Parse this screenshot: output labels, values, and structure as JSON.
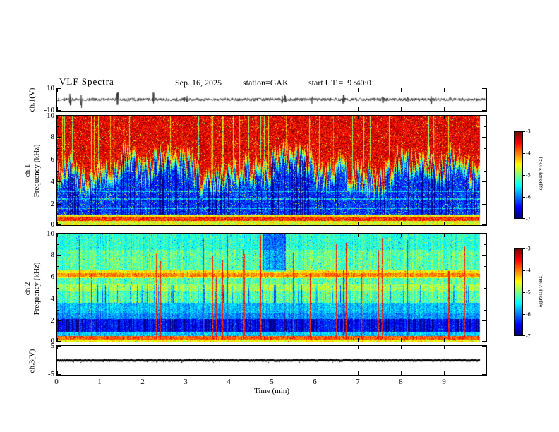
{
  "header": {
    "title": "VLF Spectra",
    "date": "Sep. 16, 2025",
    "station": "station=GAK",
    "start_ut": "start UT =  9 :40:0"
  },
  "axes": {
    "time_label": "Time (min)",
    "time_range": [
      0,
      10
    ],
    "time_ticks": [
      0,
      1,
      2,
      3,
      4,
      5,
      6,
      7,
      8,
      9
    ]
  },
  "panels": {
    "ch1_wave": {
      "ylabel": "ch.1(V)",
      "yrange": [
        -10,
        10
      ],
      "ytick_marks": [
        10,
        0,
        -10
      ],
      "ytick_labels": [
        10,
        -10
      ]
    },
    "ch1_spec": {
      "ylabel_line1": "ch.1",
      "ylabel_line2": "Frequency (kHz)",
      "yrange": [
        0,
        10
      ],
      "ytick_marks": [
        0,
        1,
        2,
        3,
        4,
        5,
        6,
        7,
        8,
        9,
        10
      ],
      "ytick_labels": [
        0,
        2,
        4,
        6,
        8,
        10
      ]
    },
    "ch2_spec": {
      "ylabel_line1": "ch.2",
      "ylabel_line2": "Frequency (kHz)",
      "yrange": [
        0,
        10
      ],
      "ytick_marks": [
        0,
        1,
        2,
        3,
        4,
        5,
        6,
        7,
        8,
        9,
        10
      ],
      "ytick_labels": [
        0,
        2,
        4,
        6,
        8,
        10
      ]
    },
    "ch3_wave": {
      "ylabel": "ch.3(V)",
      "yrange": [
        -5,
        5
      ],
      "ytick_marks": [
        5,
        0,
        -5
      ],
      "ytick_labels": [
        5,
        -5
      ],
      "trace_value": 0
    }
  },
  "colorbar": {
    "label": "log(PSD)(V²/Hz)",
    "ticks": [
      -3,
      -4,
      -5,
      -6,
      -7
    ],
    "range": [
      -7,
      -3
    ],
    "colormap": "jet"
  },
  "chart_data": [
    {
      "type": "line",
      "name": "ch.1 voltage time series",
      "x_range_min": [
        0,
        10
      ],
      "y_range_V": [
        -10,
        10
      ],
      "description": "Broadband noise trace centered on 0 V, typical amplitude about ±2 V, with frequent impulsive spikes reaching roughly ±5 to ±9 V scattered across the whole 10-minute record."
    },
    {
      "type": "heatmap",
      "name": "ch.1 spectrogram",
      "x_range_min": [
        0,
        10
      ],
      "y_range_kHz": [
        0,
        10
      ],
      "z_range_logPSD": [
        -7,
        -3
      ],
      "colormap": "jet",
      "structure": {
        "boundary_khz_mean": 5.0,
        "boundary_jitter_khz": 2.3,
        "above_boundary_level": -3.4,
        "below_boundary_level": -6.3,
        "dark_column_fraction": 0.2,
        "speckle_fraction": 0.06,
        "green_streak_fraction": 0.06,
        "horizontal_lines_khz": [
          1.55,
          2.35,
          3.1
        ],
        "bottom_bands": [
          {
            "f": [
              0.0,
              0.35
            ],
            "level": -4.6
          },
          {
            "f": [
              0.35,
              0.75
            ],
            "level": -3.7
          },
          {
            "f": [
              0.75,
              0.95
            ],
            "level": -4.5
          }
        ]
      }
    },
    {
      "type": "heatmap",
      "name": "ch.2 spectrogram",
      "x_range_min": [
        0,
        10
      ],
      "y_range_kHz": [
        0,
        10
      ],
      "z_range_logPSD": [
        -7,
        -3
      ],
      "colormap": "jet",
      "structure": {
        "base_level": -5.15,
        "bands": [
          {
            "f": [
              8.5,
              10.0
            ],
            "level": -5.35
          },
          {
            "f": [
              5.9,
              6.6
            ],
            "level": -4.45
          },
          {
            "f": [
              6.05,
              6.35
            ],
            "level": -4.05
          },
          {
            "f": [
              4.7,
              5.3
            ],
            "level": -4.85
          },
          {
            "f": [
              2.6,
              3.6
            ],
            "level": -5.75
          },
          {
            "f": [
              2.1,
              2.6
            ],
            "level": -5.95
          },
          {
            "f": [
              0.9,
              2.1
            ],
            "level": -6.45
          },
          {
            "f": [
              0.5,
              0.9
            ],
            "level": -5.7
          },
          {
            "f": [
              0.15,
              0.5
            ],
            "level": -3.85
          },
          {
            "f": [
              0.0,
              0.15
            ],
            "level": -4.5
          }
        ],
        "dark_band_khz": [
          0.9,
          2.1
        ],
        "mid_dark_khz": [
          3.6,
          5.2
        ],
        "dark_column_fraction": 0.22,
        "mid_dark_fraction": 0.1,
        "red_streaks": {
          "count": 26,
          "level": -3.6,
          "top_khz": [
            6,
            10
          ]
        },
        "dark_patch": {
          "t": [
            4.85,
            5.4
          ],
          "f": [
            6.5,
            10
          ],
          "delta": -0.9
        }
      }
    },
    {
      "type": "line",
      "name": "ch.3 voltage time series",
      "x_range_min": [
        0,
        10
      ],
      "y_range_V": [
        -5,
        5
      ],
      "value": 0,
      "description": "Flat heavy black trace constant at about 0 V for the entire record."
    }
  ]
}
